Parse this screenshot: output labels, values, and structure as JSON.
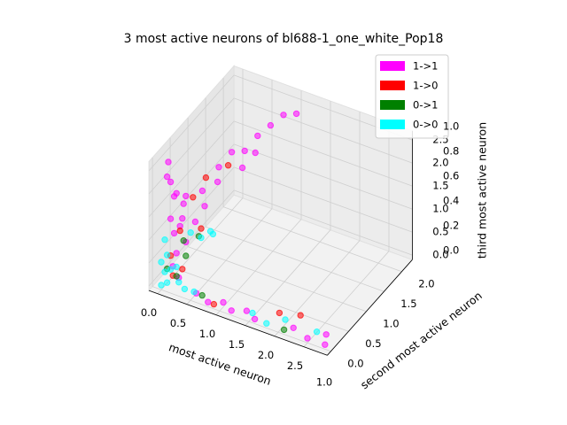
{
  "chart_data": [
    {
      "type": "scatter3d",
      "title": "3 most active neurons of bl688-1_one_white_Pop18",
      "xlabel": "most active neuron",
      "ylabel": "second most active neuron",
      "zlabel": "third most active neuron",
      "xlim": [
        -0.15,
        2.9
      ],
      "ylim": [
        -0.1,
        2.3
      ],
      "zlim": [
        -0.1,
        2.7
      ],
      "xticks": [
        {
          "value": 0,
          "label": "0.0"
        },
        0.5,
        {
          "value": 1,
          "label": "1.0"
        },
        1.5,
        {
          "value": 2,
          "label": "2.0"
        },
        2.5
      ],
      "yticks": [
        {
          "value": 0,
          "label": "0.0"
        },
        0.5,
        {
          "value": 1,
          "label": "1.0"
        },
        1.5,
        {
          "value": 2,
          "label": "2.0"
        }
      ],
      "zticks": [
        {
          "value": 0,
          "label": "0.0"
        },
        0.5,
        {
          "value": 1,
          "label": "1.0"
        },
        1.5,
        {
          "value": 2,
          "label": "2.0"
        },
        2.5
      ],
      "grid": true,
      "legend": "upper right",
      "series": [
        {
          "name": "1->1",
          "color": "#ff00ff",
          "x": [
            0.1,
            0.2,
            0.1,
            0.3,
            0.2,
            0.1,
            0.3,
            0.2,
            0.4,
            0.1,
            0.3,
            0.2,
            0.5,
            0.4,
            0.6,
            0.5,
            0.6,
            0.7,
            0.8,
            0.9,
            1.0,
            1.1,
            0.7,
            0.6,
            0.1,
            0.0,
            0.2,
            0.3,
            0.8,
            1.0,
            1.2,
            1.4,
            1.6,
            2.2,
            2.5,
            2.8,
            2.7,
            0.6
          ],
          "y": [
            0.1,
            0.1,
            0.2,
            0.2,
            0.3,
            0.1,
            0.1,
            0.2,
            0.3,
            0.2,
            0.2,
            0.1,
            0.4,
            0.5,
            0.6,
            0.8,
            1.0,
            1.2,
            1.4,
            1.6,
            1.8,
            2.0,
            1.5,
            1.3,
            0.0,
            0.2,
            0.0,
            0.0,
            0.0,
            0.1,
            0.0,
            0.1,
            0.0,
            0.1,
            0.0,
            0.0,
            0.2,
            0.0
          ],
          "z": [
            2.2,
            2.0,
            1.8,
            1.9,
            1.6,
            1.4,
            1.5,
            1.2,
            1.3,
            1.0,
            0.9,
            0.7,
            1.6,
            1.8,
            2.0,
            2.1,
            2.3,
            2.2,
            2.4,
            2.5,
            2.6,
            2.5,
            1.9,
            1.7,
            2.4,
            2.5,
            0.5,
            0.3,
            0.0,
            0.0,
            0.0,
            0.0,
            0.0,
            0.0,
            0.0,
            0.0,
            0.0,
            0.1
          ]
        },
        {
          "name": "1->0",
          "color": "#ff0000",
          "x": [
            0.3,
            0.4,
            0.2,
            0.1,
            0.2,
            0.5,
            0.9,
            1.9,
            2.2,
            0.3,
            0.6
          ],
          "y": [
            0.4,
            0.6,
            0.2,
            0.1,
            0.0,
            0.3,
            0.0,
            0.2,
            0.3,
            0.1,
            0.9
          ],
          "z": [
            1.7,
            2.0,
            1.1,
            0.6,
            0.3,
            1.2,
            0.0,
            0.1,
            0.1,
            0.4,
            2.1
          ]
        },
        {
          "name": "0->1",
          "color": "#008000",
          "x": [
            0.2,
            0.1,
            0.4,
            0.3,
            2.1,
            0.7,
            0.2
          ],
          "y": [
            0.1,
            0.0,
            0.4,
            0.2,
            0.0,
            0.0,
            0.3
          ],
          "z": [
            0.2,
            0.4,
            0.9,
            0.6,
            0.0,
            0.1,
            0.8
          ]
        },
        {
          "name": "0->0",
          "color": "#00ffff",
          "x": [
            0.0,
            0.1,
            0.0,
            0.1,
            0.0,
            0.1,
            0.0,
            0.2,
            0.3,
            0.5,
            0.4,
            1.5,
            1.8,
            2.0,
            2.6,
            0.5,
            0.6,
            0.2,
            0.4
          ],
          "y": [
            0.0,
            0.0,
            0.1,
            0.1,
            0.0,
            0.0,
            0.1,
            0.1,
            0.0,
            0.1,
            0.0,
            0.1,
            0.0,
            0.2,
            0.1,
            0.3,
            0.4,
            0.5,
            0.8
          ],
          "z": [
            0.0,
            0.1,
            0.2,
            0.3,
            0.5,
            0.7,
            0.9,
            0.4,
            0.2,
            0.0,
            0.1,
            0.0,
            0.0,
            0.0,
            0.1,
            1.0,
            1.1,
            0.8,
            0.6
          ]
        }
      ]
    },
    {
      "type": "axes",
      "ylim": [
        0,
        1
      ],
      "yticks": [
        {
          "value": 0,
          "label": "0.0"
        },
        0.2,
        0.4,
        0.6,
        0.8,
        {
          "value": 1,
          "label": "1.0"
        }
      ],
      "xticks": [
        {
          "value": 1,
          "label": "1.0"
        }
      ]
    }
  ]
}
